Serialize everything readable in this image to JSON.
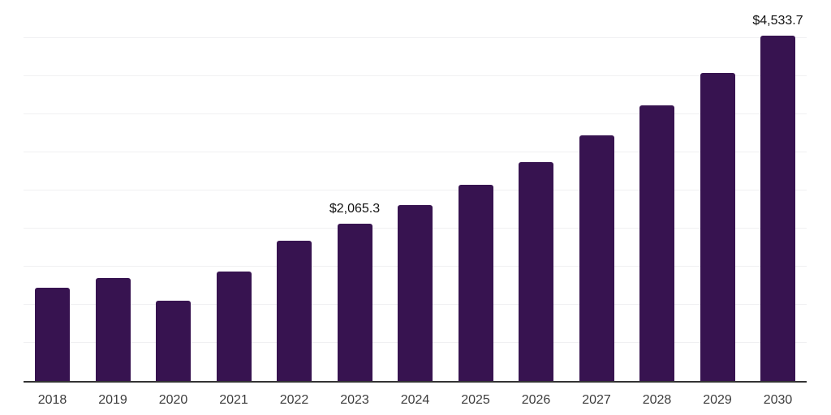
{
  "chart_data": {
    "type": "bar",
    "title": "",
    "xlabel": "",
    "ylabel": "",
    "categories": [
      "2018",
      "2019",
      "2020",
      "2021",
      "2022",
      "2023",
      "2024",
      "2025",
      "2026",
      "2027",
      "2028",
      "2029",
      "2030"
    ],
    "values": [
      1220,
      1350,
      1050,
      1435,
      1845,
      2065.3,
      2305,
      2570,
      2875,
      3220,
      3615,
      4045,
      4533.7
    ],
    "data_labels": [
      {
        "index": 5,
        "text": "$2,065.3"
      },
      {
        "index": 12,
        "text": "$4,533.7"
      }
    ],
    "ylim": [
      0,
      5000
    ],
    "gridline_step": 500,
    "grid": true,
    "legend": "none",
    "y_axis_labels_visible": false,
    "bar_color": "#371350",
    "axis_line_color": "#333333",
    "gridline_color": "#f0f0f2",
    "tick_label_color": "#3d3d3d",
    "annotation_color": "#111111"
  }
}
